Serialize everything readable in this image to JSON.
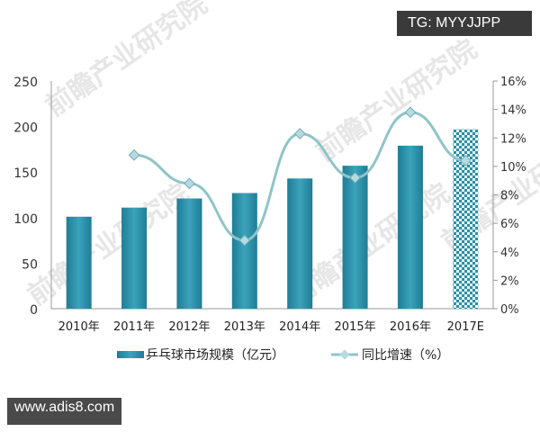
{
  "badge_top": "TG: MYYJJPP",
  "badge_bottom": "www.adis8.com",
  "watermark": "前瞻产业研究院",
  "chart_data": {
    "type": "bar+line",
    "categories": [
      "2010年",
      "2011年",
      "2012年",
      "2013年",
      "2014年",
      "2015年",
      "2016年",
      "2017E"
    ],
    "series": [
      {
        "name": "乒乓球市场规模（亿元）",
        "type": "bar",
        "axis": "left",
        "values": [
          101,
          111,
          121,
          127,
          143,
          157,
          179,
          197
        ],
        "color": "#2a8fa8",
        "estimate_style": "checkered"
      },
      {
        "name": "同比增速（%）",
        "type": "line",
        "axis": "right",
        "values": [
          null,
          10.8,
          8.8,
          4.8,
          12.3,
          9.2,
          13.8,
          10.4
        ],
        "color": "#8fc4c9"
      }
    ],
    "left_axis": {
      "ylim": [
        0,
        250
      ],
      "ticks": [
        "0",
        "50",
        "100",
        "150",
        "200",
        "250"
      ]
    },
    "right_axis": {
      "ylim": [
        0,
        16
      ],
      "ticks": [
        "0%",
        "2%",
        "4%",
        "6%",
        "8%",
        "10%",
        "12%",
        "14%",
        "16%"
      ]
    },
    "legend": "bottom",
    "grid": false
  }
}
